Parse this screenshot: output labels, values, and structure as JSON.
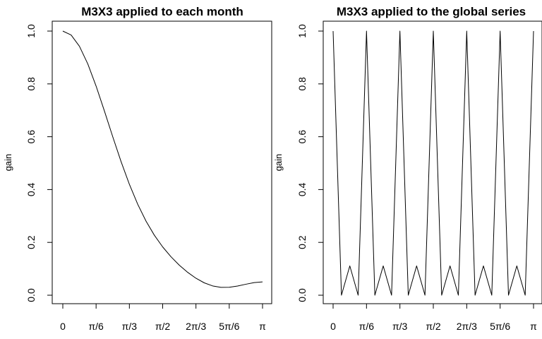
{
  "chart_data": [
    {
      "type": "line",
      "title": "M3X3 applied to each month",
      "xlabel": "",
      "ylabel": "gain",
      "xlim": [
        0,
        3.14159
      ],
      "ylim": [
        0,
        1.0
      ],
      "x_tick_labels": [
        "0",
        "π/6",
        "π/3",
        "π/2",
        "2π/3",
        "5π/6",
        "π"
      ],
      "y_tick_labels": [
        "0.0",
        "0.2",
        "0.4",
        "0.6",
        "0.8",
        "1.0"
      ],
      "grid": false,
      "series": [
        {
          "x": [
            0,
            0.1309,
            0.2618,
            0.3927,
            0.5236,
            0.6545,
            0.7854,
            0.9163,
            1.0472,
            1.1781,
            1.309,
            1.4399,
            1.5708,
            1.7017,
            1.8326,
            1.9635,
            2.0944,
            2.2253,
            2.3562,
            2.4871,
            2.618,
            2.7489,
            2.8798,
            3.0107,
            3.1416
          ],
          "values": [
            1.0,
            0.9852,
            0.9424,
            0.8758,
            0.7917,
            0.6974,
            0.6,
            0.5059,
            0.4198,
            0.3444,
            0.2804,
            0.2271,
            0.1828,
            0.1455,
            0.1137,
            0.0867,
            0.0642,
            0.0468,
            0.0352,
            0.0298,
            0.0301,
            0.0348,
            0.0416,
            0.0479,
            0.0504
          ]
        }
      ]
    },
    {
      "type": "line",
      "title": "M3X3 applied to the global series",
      "xlabel": "",
      "ylabel": "gain",
      "xlim": [
        0,
        3.14159
      ],
      "ylim": [
        0,
        1.0
      ],
      "x_tick_labels": [
        "0",
        "π/6",
        "π/3",
        "π/2",
        "2π/3",
        "5π/6",
        "π"
      ],
      "y_tick_labels": [
        "0.0",
        "0.2",
        "0.4",
        "0.6",
        "0.8",
        "1.0"
      ],
      "grid": false,
      "series": [
        {
          "x": [
            0,
            0.1309,
            0.2618,
            0.3927,
            0.5236,
            0.6545,
            0.7854,
            0.9163,
            1.0472,
            1.1781,
            1.309,
            1.4399,
            1.5708,
            1.7017,
            1.8326,
            1.9635,
            2.0944,
            2.2253,
            2.3562,
            2.4871,
            2.618,
            2.7489,
            2.8798,
            3.0107,
            3.1416
          ],
          "values": [
            1.0,
            0.0,
            0.1111,
            0.0,
            1.0,
            0.0,
            0.1111,
            0.0,
            1.0,
            0.0,
            0.1111,
            0.0,
            1.0,
            0.0,
            0.1111,
            0.0,
            1.0,
            0.0,
            0.1111,
            0.0,
            1.0,
            0.0,
            0.1111,
            0.0,
            1.0
          ]
        }
      ]
    }
  ]
}
